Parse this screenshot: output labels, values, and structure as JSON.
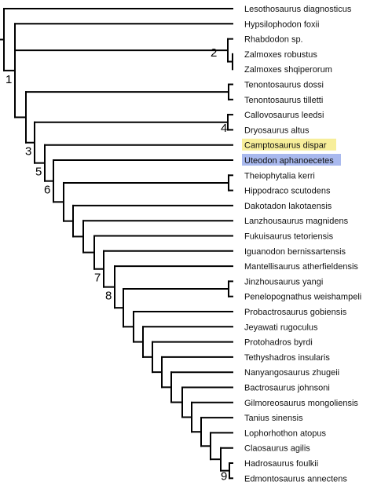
{
  "taxa": [
    {
      "name": "Lesothosaurus diagnosticus"
    },
    {
      "name": "Hypsilophodon foxii"
    },
    {
      "name": "Rhabdodon sp."
    },
    {
      "name": "Zalmoxes robustus"
    },
    {
      "name": "Zalmoxes shqiperorum"
    },
    {
      "name": "Tenontosaurus dossi"
    },
    {
      "name": "Tenontosaurus tilletti"
    },
    {
      "name": "Callovosaurus leedsi"
    },
    {
      "name": "Dryosaurus altus"
    },
    {
      "name": "Camptosaurus dispar",
      "highlight": "#f7ee9a"
    },
    {
      "name": "Uteodon aphanoecetes",
      "highlight": "#a9b9ee"
    },
    {
      "name": "Theiophytalia kerri"
    },
    {
      "name": "Hippodraco scutodens"
    },
    {
      "name": "Dakotadon lakotaensis"
    },
    {
      "name": "Lanzhousaurus magnidens"
    },
    {
      "name": "Fukuisaurus tetoriensis"
    },
    {
      "name": "Iguanodon bernissartensis"
    },
    {
      "name": "Mantellisaurus atherfieldensis"
    },
    {
      "name": "Jinzhousaurus yangi"
    },
    {
      "name": "Penelopognathus weishampeli"
    },
    {
      "name": "Probactrosaurus gobiensis"
    },
    {
      "name": "Jeyawati rugoculus"
    },
    {
      "name": "Protohadros byrdi"
    },
    {
      "name": "Tethyshadros insularis"
    },
    {
      "name": "Nanyangosaurus zhugeii"
    },
    {
      "name": "Bactrosaurus johnsoni"
    },
    {
      "name": "Gilmoreosaurus mongoliensis"
    },
    {
      "name": "Tanius sinensis"
    },
    {
      "name": "Lophorhothon atopus"
    },
    {
      "name": "Claosaurus agilis"
    },
    {
      "name": "Hadrosaurus foulkii"
    },
    {
      "name": "Edmontosaurus annectens"
    }
  ],
  "node_labels": [
    {
      "text": "1",
      "node": "n1"
    },
    {
      "text": "2",
      "node": "n2"
    },
    {
      "text": "3",
      "node": "n3"
    },
    {
      "text": "4",
      "node": "n4"
    },
    {
      "text": "5",
      "node": "n5"
    },
    {
      "text": "6",
      "node": "n6"
    },
    {
      "text": "7",
      "node": "n7"
    },
    {
      "text": "8",
      "node": "n8"
    },
    {
      "text": "9",
      "node": "n9"
    }
  ]
}
